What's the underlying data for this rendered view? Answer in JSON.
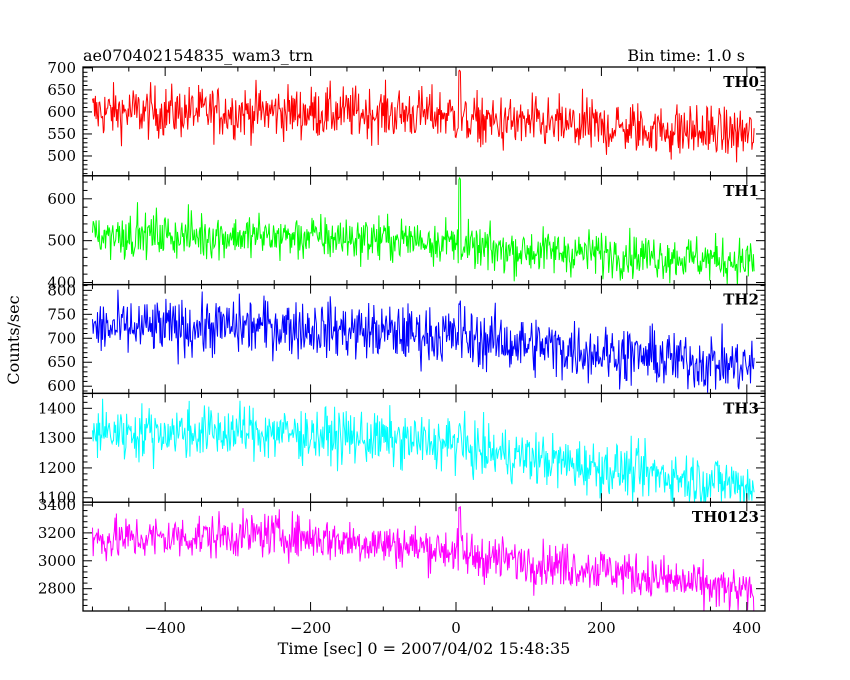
{
  "header": {
    "title": "ae070402154835_wam3_trn",
    "bin_time": "Bin time: 1.0 s"
  },
  "chart_data": {
    "type": "line",
    "xlabel": "Time [sec] 0 = 2007/04/02 15:48:35",
    "ylabel": "Counts/sec",
    "xlim": [
      -513,
      425
    ],
    "x_ticks": [
      -400,
      -200,
      0,
      200,
      400
    ],
    "x_range_data": [
      -500,
      410
    ],
    "panels": [
      {
        "name": "TH0",
        "color": "#ff0000",
        "ylim": [
          455,
          702
        ],
        "y_ticks": [
          500,
          550,
          600,
          650,
          700
        ],
        "trend": [
          [
            -500,
            600
          ],
          [
            -250,
            600
          ],
          [
            -10,
            595
          ],
          [
            10,
            580
          ],
          [
            200,
            565
          ],
          [
            410,
            550
          ]
        ],
        "noise": 30,
        "spike": {
          "x": 5,
          "value": 700
        }
      },
      {
        "name": "TH1",
        "color": "#00ff00",
        "ylim": [
          395,
          655
        ],
        "y_ticks": [
          400,
          500,
          600
        ],
        "trend": [
          [
            -500,
            515
          ],
          [
            -250,
            510
          ],
          [
            -10,
            500
          ],
          [
            10,
            480
          ],
          [
            200,
            470
          ],
          [
            410,
            450
          ]
        ],
        "noise": 27,
        "spike": {
          "x": 5,
          "value": 650
        }
      },
      {
        "name": "TH2",
        "color": "#0000ff",
        "ylim": [
          585,
          812
        ],
        "y_ticks": [
          600,
          650,
          700,
          750,
          800
        ],
        "trend": [
          [
            -500,
            720
          ],
          [
            -250,
            725
          ],
          [
            -10,
            705
          ],
          [
            10,
            700
          ],
          [
            200,
            670
          ],
          [
            410,
            640
          ]
        ],
        "noise": 30,
        "spike": {
          "x": 5,
          "value": 780
        }
      },
      {
        "name": "TH3",
        "color": "#00ffff",
        "ylim": [
          1085,
          1450
        ],
        "y_ticks": [
          1100,
          1200,
          1300,
          1400
        ],
        "trend": [
          [
            -500,
            1320
          ],
          [
            -250,
            1320
          ],
          [
            -10,
            1280
          ],
          [
            10,
            1265
          ],
          [
            200,
            1200
          ],
          [
            410,
            1140
          ]
        ],
        "noise": 45,
        "spike": {
          "x": 5,
          "value": 1350
        }
      },
      {
        "name": "TH0123",
        "color": "#ff00ff",
        "ylim": [
          2640,
          3420
        ],
        "y_ticks": [
          2800,
          3000,
          3200,
          3400
        ],
        "trend": [
          [
            -500,
            3150
          ],
          [
            -250,
            3190
          ],
          [
            -10,
            3080
          ],
          [
            10,
            3040
          ],
          [
            200,
            2940
          ],
          [
            410,
            2760
          ]
        ],
        "noise": 80,
        "spike": {
          "x": 5,
          "value": 3400
        }
      }
    ]
  }
}
